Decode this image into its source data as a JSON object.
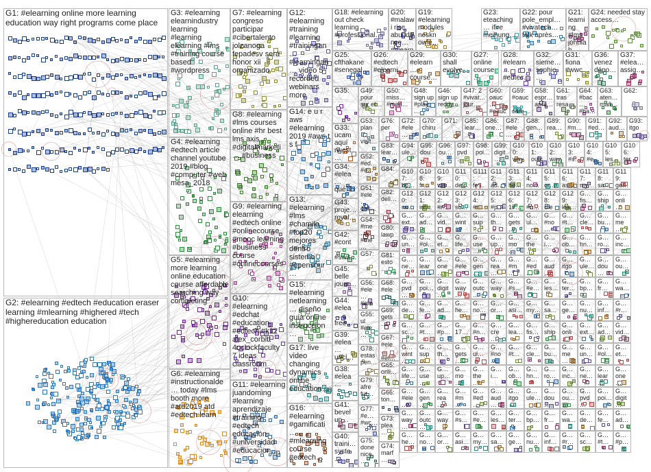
{
  "graph": {
    "title": "",
    "groups": [
      {
        "id": "G1",
        "label": "G1: #elearning online more learning education way right programs come place",
        "color": "#1a3a8a",
        "size": "big"
      },
      {
        "id": "G2",
        "label": "G2: #elearning #edtech #education eraser learning #mlearning #highered #tech #highereducation education",
        "color": "#2a78c2",
        "size": "big"
      },
      {
        "id": "G3",
        "label": "G3: #elearning elearnindustry learning #learning elearning #lms #training course based #wordpress",
        "color": "#5aa08a",
        "size": "normal"
      },
      {
        "id": "G4",
        "label": "G4: #elearning #edtech article channel youtube 2019 #blog #computer #web mesa_2018",
        "color": "#2e8b3e",
        "size": "normal"
      },
      {
        "id": "G5",
        "label": "G5: #elearning more learning online education course affordable searching way completing",
        "color": "#6a2a8a",
        "size": "normal"
      },
      {
        "id": "G6",
        "label": "G6: #elearning #instructionalde… today #lms booth more #atd2019 atd #edtech learn",
        "color": "#e08a1a",
        "size": "normal"
      },
      {
        "id": "G7",
        "label": "G7: #elearning congreso participar #cibertalento jolzanoga fepadesv será honor xii organizado",
        "color": "#8a8a3a",
        "size": "normal"
      },
      {
        "id": "G8",
        "label": "G8: #elearning #lms courses online #hr best lms axis #digitalmarketi… #business",
        "color": "#3a7a2a",
        "size": "normal"
      },
      {
        "id": "G9",
        "label": "G9: #elearning elearning #edtech online #onlinecourse #mooc learning #business course #onlinecourses",
        "color": "#a03a8a",
        "size": "normal"
      },
      {
        "id": "G10",
        "label": "G10: #elearning #edchat #education #edtech #k12 alex_corbitt 4oclockfaculty 7 ideas classroom",
        "color": "#6a3a9a",
        "size": "normal"
      },
      {
        "id": "G11",
        "label": "G11: #elearning juandoming #learning aprendizaje #training #edtech educación #universidad #educacion…",
        "color": "#3a6a9a",
        "size": "normal"
      },
      {
        "id": "G12",
        "label": "G12: #elearning #training #learning #trainingan… #learningan… video 5 recorded webinars more",
        "color": "#5a5a9a",
        "size": "normal"
      },
      {
        "id": "G13",
        "label": "G13: #elearning #lms #chamilo #top20 mejores dentro sistema #opensour…",
        "color": "#3a7a9a",
        "size": "normal"
      },
      {
        "id": "G14",
        "label": "G14: e u r aws #elearning 2019 #aws t s f",
        "color": "#2a6aaa",
        "size": "normal"
      },
      {
        "id": "G15",
        "label": "G15: #elearning netlearning… diseño guía online instruccion…",
        "color": "#4a8a4a",
        "size": "normal"
      },
      {
        "id": "G16",
        "label": "G16: #elearning #gamificati… #mlearning course #edtech…",
        "color": "#8a4a2a",
        "size": "normal"
      },
      {
        "id": "G17",
        "label": "G17: live video changing dynamics online education…",
        "color": "#2a8a8a",
        "size": "normal"
      },
      {
        "id": "G18",
        "label": "G18: #elearning out check learning #professional…",
        "color": "#6a6a9a",
        "size": "small"
      },
      {
        "id": "G19",
        "label": "G19: #elearning modules neskn​owle…",
        "color": "#aa7a2a",
        "size": "small"
      },
      {
        "id": "G20",
        "label": "G20: #malawi rise abundance… #elearning…",
        "color": "#3a3a8a",
        "size": "small"
      },
      {
        "id": "G21",
        "label": "G21: learning #lms johnlah…",
        "color": "#8a2a6a",
        "size": "small"
      },
      {
        "id": "G22",
        "label": "G22: pour pole_empl… #vivatech… talk après…",
        "color": "#2a7aaa",
        "size": "small"
      },
      {
        "id": "G23",
        "label": "G23: eteaching… ifire meinung…",
        "color": "#4a9aaa",
        "size": "small"
      },
      {
        "id": "G24",
        "label": "G24: needed stay access…",
        "color": "#5a8a3a",
        "size": "small"
      },
      {
        "id": "G25",
        "label": "G25: cfthakane #senegal…",
        "color": "#3a5aaa",
        "size": "small"
      },
      {
        "id": "G26",
        "label": "G26: #edtech #elearni…",
        "color": "#aa3a3a",
        "size": "small"
      },
      {
        "id": "G27",
        "label": "G27: online course…",
        "color": "#2a9a6a",
        "size": "small"
      },
      {
        "id": "G28",
        "label": "G28: #elearn… #edtec…",
        "color": "#6a3aaa",
        "size": "small"
      },
      {
        "id": "G29",
        "label": "G29: #elearn… course…",
        "color": "#9a6a2a",
        "size": "small"
      },
      {
        "id": "G30",
        "label": "G30: shall evolve…",
        "color": "#3a8a8a",
        "size": "small"
      },
      {
        "id": "G31",
        "label": "G31: fiona #wwc…",
        "color": "#8a8a2a",
        "size": "small"
      },
      {
        "id": "G32",
        "label": "G32: sieme… sophie…",
        "color": "#5a5aaa",
        "size": "small"
      },
      {
        "id": "G33",
        "label": "G33: ucam aquí nuest…",
        "color": "#aa5a2a",
        "size": "small"
      },
      {
        "id": "G34",
        "label": "G34: #elea… qué…",
        "color": "#2a5a8a",
        "size": "small"
      },
      {
        "id": "G35",
        "label": "G35:",
        "color": "#7a2a9a",
        "size": "small"
      },
      {
        "id": "G36",
        "label": "G36: venez dépo…",
        "color": "#3a7a5a",
        "size": "small"
      },
      {
        "id": "G37",
        "label": "G37: #elea… assig…",
        "color": "#9a3a6a",
        "size": "small"
      },
      {
        "id": "G38",
        "label": "G38: #elea…",
        "color": "#2a6a6a",
        "size": "small"
      },
      {
        "id": "G39",
        "label": "G39: #elea… uncl…",
        "color": "#6a6a2a",
        "size": "small"
      },
      {
        "id": "G40",
        "label": "G40: traini… syste…",
        "color": "#4a4a9a",
        "size": "small"
      },
      {
        "id": "G41",
        "label": "G41: bevel up…",
        "color": "#8a4a6a",
        "size": "small"
      },
      {
        "id": "G42",
        "label": "G42: #cont… #swit…",
        "color": "#2a8a4a",
        "size": "small"
      },
      {
        "id": "G43",
        "label": "G43: proje… royal…",
        "color": "#9a7a3a",
        "size": "small"
      },
      {
        "id": "G44",
        "label": "G44: #elea… free…",
        "color": "#3a3a7a",
        "size": "small"
      },
      {
        "id": "G45",
        "label": "G45: belle journ…",
        "color": "#7a5a9a",
        "size": "small"
      },
      {
        "id": "G46",
        "label": "G46: sign up reddy…",
        "color": "#5a9a5a",
        "size": "tiny"
      },
      {
        "id": "G47",
        "label": "G47: 2 #vivat… jour…",
        "color": "#9a5a5a",
        "size": "tiny"
      },
      {
        "id": "G48",
        "label": "G48: sign up #play…",
        "color": "#3a6a9a",
        "size": "tiny"
      },
      {
        "id": "G49",
        "label": "G49: pour sur et…",
        "color": "#6a8a3a",
        "size": "tiny"
      },
      {
        "id": "G50",
        "label": "G50: miss… #med…",
        "color": "#aa4a8a",
        "size": "tiny"
      },
      {
        "id": "G51",
        "label": "G51: #ele… onli…",
        "color": "#2a4a9a",
        "size": "tiny"
      },
      {
        "id": "G52",
        "label": "G52: #ed… #e…",
        "color": "#8a6a2a",
        "size": "tiny"
      },
      {
        "id": "G53",
        "label": "G53: plan… visit…",
        "color": "#4a7a7a",
        "size": "tiny"
      },
      {
        "id": "G54",
        "label": "G54: #me… #me…",
        "color": "#7a3a3a",
        "size": "tiny"
      },
      {
        "id": "G55",
        "label": "G55: ul #ele…",
        "color": "#3a8a6a",
        "size": "tiny"
      },
      {
        "id": "G56",
        "label": "G56: #ele… #ele…",
        "color": "#6a4a8a",
        "size": "tiny"
      },
      {
        "id": "G57",
        "label": "G57:",
        "color": "#8a8a5a",
        "size": "tiny"
      },
      {
        "id": "G58",
        "label": "G58: espr… apre…",
        "color": "#5a3a7a",
        "size": "tiny"
      },
      {
        "id": "G59",
        "label": "G59: #oauc… care…",
        "color": "#3a9a9a",
        "size": "tiny"
      },
      {
        "id": "G60",
        "label": "G60: oauc… #oauc…",
        "color": "#9a4a4a",
        "size": "tiny"
      },
      {
        "id": "G61",
        "label": "G61: tras resa…",
        "color": "#4a6a3a",
        "size": "tiny"
      },
      {
        "id": "G62",
        "label": "G62:",
        "color": "#7a7a9a",
        "size": "tiny"
      },
      {
        "id": "G63",
        "label": "G63: aten… mañ…",
        "color": "#2a7a3a",
        "size": "tiny"
      },
      {
        "id": "G64",
        "label": "G64: #bac… #ba…",
        "color": "#8a3a8a",
        "size": "tiny"
      },
      {
        "id": "G65",
        "label": "G65: onli…",
        "color": "#5a7a2a",
        "size": "tiny"
      },
      {
        "id": "G66",
        "label": "G66: ton…",
        "color": "#3a4a6a",
        "size": "tiny"
      },
      {
        "id": "G67",
        "label": "G67: #ele… #el…",
        "color": "#9a6a6a",
        "size": "tiny"
      },
      {
        "id": "G68",
        "label": "G68: #ele…",
        "color": "#2a5a5a",
        "size": "tiny"
      },
      {
        "id": "G69",
        "label": "G69: gets…",
        "color": "#6a2a4a",
        "size": "tiny"
      },
      {
        "id": "G70",
        "label": "G70: chiru…",
        "color": "#4a8a8a",
        "size": "tiny"
      },
      {
        "id": "G71",
        "label": "G71:",
        "color": "#8a5a3a",
        "size": "tiny"
      },
      {
        "id": "G72",
        "label": "G72: #ele…",
        "color": "#3a5a8a",
        "size": "tiny"
      },
      {
        "id": "G73",
        "label": "G73: plea…",
        "color": "#7a8a4a",
        "size": "tiny"
      },
      {
        "id": "G74",
        "label": "G74: marf…",
        "color": "#5a4a6a",
        "size": "tiny"
      },
      {
        "id": "G75",
        "label": "G75: done nice…",
        "color": "#2a6a4a",
        "size": "tiny"
      },
      {
        "id": "G76",
        "label": "G76: per",
        "color": "#9a5a8a",
        "size": "tiny"
      },
      {
        "id": "G77",
        "label": "G77: #e… #wc…",
        "color": "#4a5a9a",
        "size": "tiny"
      },
      {
        "id": "G78",
        "label": "G78: estas pen…",
        "color": "#8a7a5a",
        "size": "tiny"
      },
      {
        "id": "G79",
        "label": "G79: afre fut…",
        "color": "#3a7a7a",
        "size": "tiny"
      },
      {
        "id": "G80",
        "label": "G80: lawp…",
        "color": "#6a3a5a",
        "size": "tiny"
      },
      {
        "id": "G81",
        "label": "G81: esto…",
        "color": "#4a9a6a",
        "size": "tiny"
      },
      {
        "id": "G82",
        "label": "G82: deli…",
        "color": "#9a3a4a",
        "size": "tiny"
      },
      {
        "id": "G83",
        "label": "G83: lear…",
        "color": "#2a4a7a",
        "size": "tiny"
      },
      {
        "id": "G84",
        "label": "G84:",
        "color": "#7a6a3a",
        "size": "tiny"
      }
    ],
    "small_group_prefix": "G",
    "small_group_fragments": [
      "lear…",
      "one…",
      "#ele…",
      "gen…",
      "rea…",
      "#m…",
      "#ed…",
      "aud…",
      "itgo",
      "ule…",
      "dou…",
      "ou…",
      "pvd…",
      "poi…",
      "digit…",
      "way…",
      "outc…",
      "way",
      "#s…",
      "#e…",
      "les…",
      "ter…",
      "bp…",
      "fr…",
      "wa…",
      "de…",
      "fe…",
      "ad…",
      "he…",
      "no…",
      "or…",
      "asi…",
      "my…",
      "sa…",
      "ge…",
      "nu…",
      "inf…",
      "#r…",
      "sc…",
      "#t…",
      "#p…",
      "17…",
      "#n…",
      "cre…",
      "lea…",
      "fis…",
      "ship",
      "onli…",
      "ext…",
      "ad…",
      "vid…",
      "wint…",
      "sup…",
      "th…",
      "gets…",
      "ul…",
      "#no…",
      "#t…",
      "cle…",
      "bu…",
      "me…",
      "un…",
      "#ol…",
      "et…",
      "life…",
      "use…",
      "up…",
      "mo…",
      "the…",
      "i…",
      "ob…",
      "hn…",
      "ro…",
      "inc…",
      "ne…"
    ]
  }
}
